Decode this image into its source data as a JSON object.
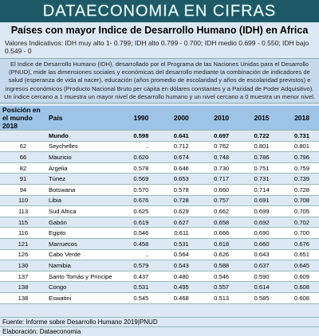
{
  "header": {
    "banner": "DATAECONOMIA EN CIFRAS",
    "title": "Países con mayor Indice de Desarrollo Humano (IDH) en Africa",
    "indicative": "Valores Indicativos: IDH muy alto 1- 0.799; IDH alto 0.799 - 0.700; IDH medio 0.699 - 0.550; IDH bajo  0.549 - 0"
  },
  "description": "El Indice de Desarrollo Humano (IDH), desarrollado por el Programa de las Naciones Unidas para el Desarrollo (PNUD), mide las dimensiones sociales y económicas del desarrollo mediante la combinación de indicadores  de salud (esperanza de vida al nacer), educación (años promedio de escolaridad y años de escolaridad previstos) e ingresos económicos (Producto Nacional Bruto per cápita en dólares constantes y a Paridad de Poder Adquisitivo). Un índice cercano a 1 muestra un mayor nivel de desarrollo humano y un nivel cercano a 0 muestra un menor nivel.",
  "table": {
    "columns": [
      "Posición en el mundo 2018",
      "País",
      "1990",
      "2000",
      "2010",
      "2015",
      "2018"
    ],
    "rows": [
      [
        null,
        "Mundo",
        "0.598",
        "0.641",
        "0.697",
        "0.722",
        "0.731"
      ],
      [
        "62",
        "Seychelles",
        "..",
        "0.712",
        "0.762",
        "0.801",
        "0.801"
      ],
      [
        "66",
        "Mauricio",
        "0.620",
        "0.674",
        "0.748",
        "0.786",
        "0.796"
      ],
      [
        "82",
        "Argelia",
        "0.578",
        "0.646",
        "0.730",
        "0.751",
        "0.759"
      ],
      [
        "91",
        "Túnez",
        "0.569",
        "0.653",
        "0.717",
        "0.731",
        "0.739"
      ],
      [
        "94",
        "Botswana",
        "0.570",
        "0.578",
        "0.660",
        "0.714",
        "0.728"
      ],
      [
        "110",
        "Libia",
        "0.676",
        "0.728",
        "0.757",
        "0.691",
        "0.708"
      ],
      [
        "113",
        "Sud Africa",
        "0.625",
        "0.629",
        "0.662",
        "0.699",
        "0.705"
      ],
      [
        "115",
        "Gabón",
        "0.619",
        "0.627",
        "0.658",
        "0.692",
        "0.702"
      ],
      [
        "116",
        "Egipto",
        "0.546",
        "0.611",
        "0.666",
        "0.690",
        "0.700"
      ],
      [
        "121",
        "Marruecos",
        "0.458",
        "0.531",
        "0.618",
        "0.660",
        "0.676"
      ],
      [
        "126",
        "Cabo Verde",
        "..",
        "0.564",
        "0.626",
        "0.643",
        "0.651"
      ],
      [
        "130",
        "Namibia",
        "0.579",
        "0.543",
        "0.588",
        "0.637",
        "0.645"
      ],
      [
        "137",
        "Santo Tomás y Principe",
        "0.437",
        "0.480",
        "0.546",
        "0.590",
        "0.609"
      ],
      [
        "138",
        "Congo",
        "0.531",
        "0.495",
        "0.557",
        "0.614",
        "0.608"
      ],
      [
        "138",
        "Eswatini",
        "0.545",
        "0.468",
        "0.513",
        "0.585",
        "0.608"
      ]
    ]
  },
  "footer": {
    "source": "Fuente: Informe sobre Desarrollo Humano 2019|PNUD",
    "author": "Elaboración: Dataeconomia"
  }
}
